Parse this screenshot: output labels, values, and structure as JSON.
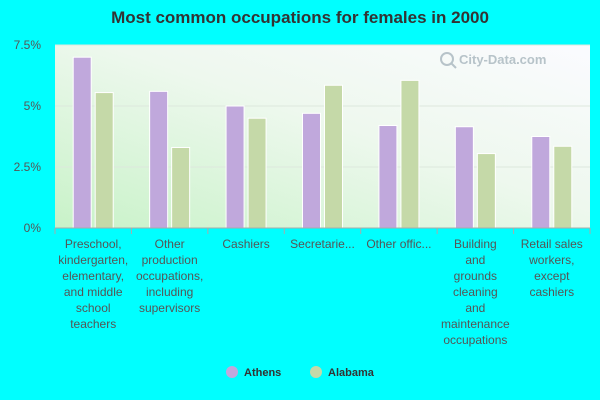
{
  "chart_data": {
    "type": "bar",
    "title": "Most common occupations for females in 2000",
    "categories": [
      [
        "Preschool,",
        "kindergarten,",
        "elementary,",
        "and middle",
        "school",
        "teachers"
      ],
      [
        "Other",
        "production",
        "occupations,",
        "including",
        "supervisors"
      ],
      [
        "Cashiers"
      ],
      [
        "Secretarie..."
      ],
      [
        "Other offic..."
      ],
      [
        "Building",
        "and",
        "grounds",
        "cleaning",
        "and",
        "maintenance",
        "occupations"
      ],
      [
        "Retail sales",
        "workers,",
        "except",
        "cashiers"
      ]
    ],
    "series": [
      {
        "name": "Athens",
        "color": "#c0a8dc",
        "values": [
          7.0,
          5.6,
          5.0,
          4.7,
          4.2,
          4.15,
          3.75
        ]
      },
      {
        "name": "Alabama",
        "color": "#c5d9a8",
        "values": [
          5.55,
          3.3,
          4.5,
          5.85,
          6.05,
          3.05,
          3.35
        ]
      }
    ],
    "yticks": [
      "0%",
      "2.5%",
      "5%",
      "7.5%"
    ],
    "ylim": [
      0,
      7.5
    ],
    "grid": true,
    "legend_position": "bottom-center"
  },
  "watermark": "City-Data.com"
}
